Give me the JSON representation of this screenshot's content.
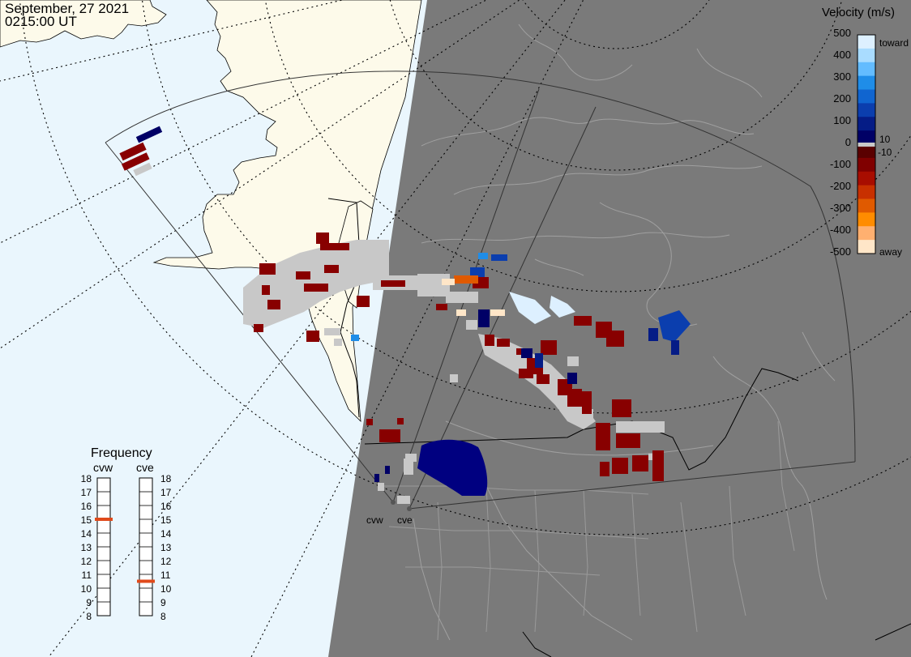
{
  "header": {
    "date": "September, 27 2021",
    "time": "0215:00 UT"
  },
  "velocity_legend": {
    "title": "Velocity (m/s)",
    "ticks": [
      "500",
      "400",
      "300",
      "200",
      "100",
      "0",
      "-100",
      "-200",
      "-300",
      "-400",
      "-500"
    ],
    "toward_label": "toward",
    "away_label": "away",
    "small_pos": "10",
    "small_neg": "-10",
    "colors": [
      "#ddf0ff",
      "#a9dcff",
      "#63bcff",
      "#1f8de8",
      "#1065d0",
      "#0b3eae",
      "#051c86",
      "#000066",
      "#5a0000",
      "#800000",
      "#a80d00",
      "#c83000",
      "#e05a00",
      "#ff8c00",
      "#ffb070",
      "#ffe6c8"
    ]
  },
  "frequency": {
    "title": "Frequency",
    "radars": [
      {
        "name": "cvw",
        "value": 15
      },
      {
        "name": "cve",
        "value": 10.5
      }
    ],
    "ticks": [
      "18",
      "17",
      "16",
      "15",
      "14",
      "13",
      "12",
      "11",
      "10",
      "9",
      "8"
    ],
    "marker_color": "#e04a1b"
  },
  "radars": [
    "cvw",
    "cve"
  ],
  "colors": {
    "ocean": "#eaf6fd",
    "land": "#fdfaea",
    "night": "#7a7a7a",
    "ground_scatter": "#c8c8c8"
  }
}
